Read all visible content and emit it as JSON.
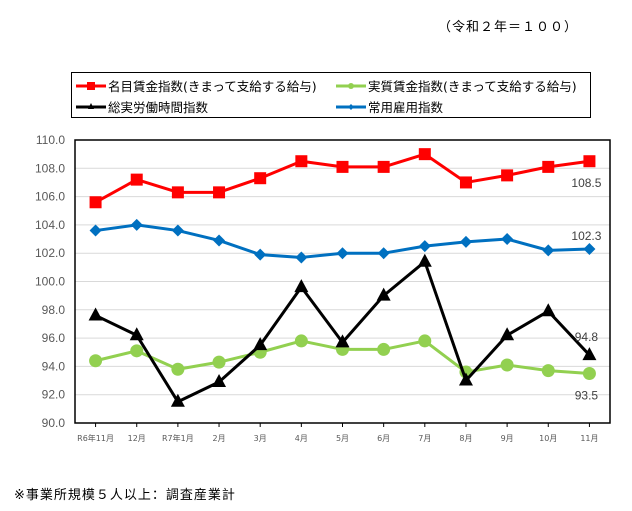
{
  "base_note": "（令和２年＝１００）",
  "footnote": "※事業所規模５人以上：調査産業計",
  "legend": [
    {
      "label": "名目賃金指数(きまって支給する給与)",
      "color": "#ff0000",
      "marker": "square"
    },
    {
      "label": "実質賃金指数(きまって支給する給与)",
      "color": "#92d050",
      "marker": "circle"
    },
    {
      "label": "総実労働時間指数",
      "color": "#000000",
      "marker": "triangle"
    },
    {
      "label": "常用雇用指数",
      "color": "#0070c0",
      "marker": "diamond"
    }
  ],
  "chart_data": {
    "type": "line",
    "title": "",
    "subtitle": "（令和２年＝１００）",
    "xlabel": "",
    "ylabel": "",
    "ylim": [
      90.0,
      110.0
    ],
    "yticks": [
      "90.0",
      "92.0",
      "94.0",
      "96.0",
      "98.0",
      "100.0",
      "102.0",
      "104.0",
      "106.0",
      "108.0",
      "110.0"
    ],
    "grid": true,
    "legend_position": "top",
    "categories": [
      "R6年11月",
      "12月",
      "R7年1月",
      "2月",
      "3月",
      "4月",
      "5月",
      "6月",
      "7月",
      "8月",
      "9月",
      "10月",
      "11月"
    ],
    "series": [
      {
        "name": "名目賃金指数(きまって支給する給与)",
        "color": "#ff0000",
        "marker": "square",
        "values": [
          105.6,
          107.2,
          106.3,
          106.3,
          107.3,
          108.5,
          108.1,
          108.1,
          109.0,
          107.0,
          107.5,
          108.1,
          108.5
        ],
        "end_label": "108.5"
      },
      {
        "name": "実質賃金指数(きまって支給する給与)",
        "color": "#92d050",
        "marker": "circle",
        "values": [
          94.4,
          95.1,
          93.8,
          94.3,
          95.0,
          95.8,
          95.2,
          95.2,
          95.8,
          93.6,
          94.1,
          93.7,
          93.5
        ],
        "end_label": "93.5"
      },
      {
        "name": "総実労働時間指数",
        "color": "#000000",
        "marker": "triangle",
        "values": [
          97.6,
          96.2,
          91.5,
          92.9,
          95.5,
          99.6,
          95.7,
          99.0,
          101.4,
          93.0,
          96.2,
          97.9,
          94.8
        ],
        "end_label": "94.8"
      },
      {
        "name": "常用雇用指数",
        "color": "#0070c0",
        "marker": "diamond",
        "values": [
          103.6,
          104.0,
          103.6,
          102.9,
          101.9,
          101.7,
          102.0,
          102.0,
          102.5,
          102.8,
          103.0,
          102.2,
          102.3
        ],
        "end_label": "102.3"
      }
    ]
  }
}
